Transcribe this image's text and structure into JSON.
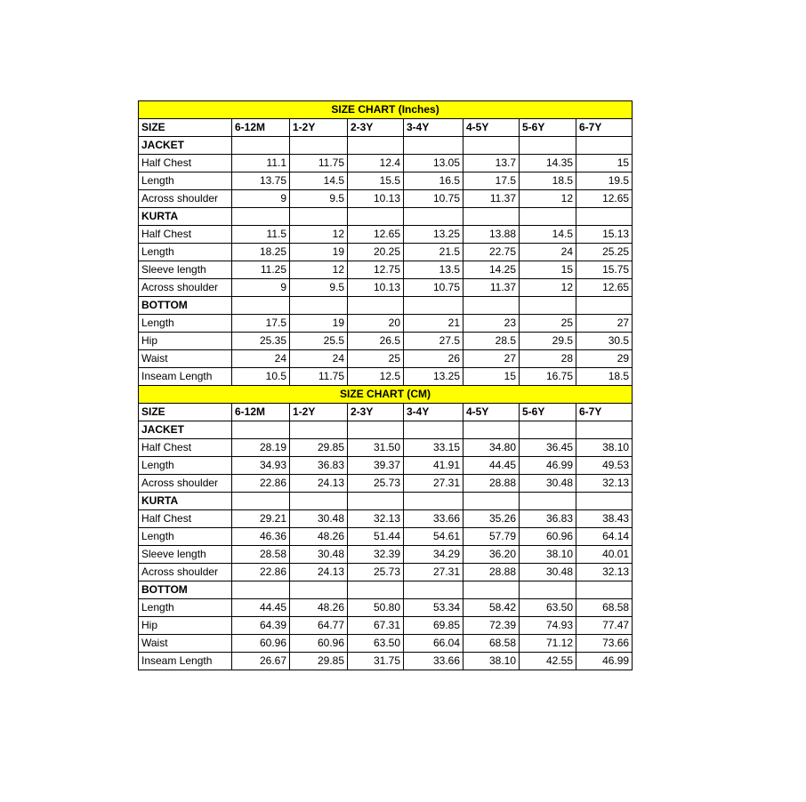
{
  "colors": {
    "title_background": "#ffff00",
    "border": "#000000",
    "text": "#000000"
  },
  "columns": [
    "SIZE",
    "6-12M",
    "1-2Y",
    "2-3Y",
    "3-4Y",
    "4-5Y",
    "5-6Y",
    "6-7Y"
  ],
  "tables": [
    {
      "title": "SIZE CHART (Inches)",
      "sections": [
        {
          "name": "JACKET",
          "rows": [
            {
              "label": "Half Chest",
              "values": [
                "11.1",
                "11.75",
                "12.4",
                "13.05",
                "13.7",
                "14.35",
                "15"
              ]
            },
            {
              "label": "Length",
              "values": [
                "13.75",
                "14.5",
                "15.5",
                "16.5",
                "17.5",
                "18.5",
                "19.5"
              ]
            },
            {
              "label": "Across shoulder",
              "values": [
                "9",
                "9.5",
                "10.13",
                "10.75",
                "11.37",
                "12",
                "12.65"
              ]
            }
          ]
        },
        {
          "name": "KURTA",
          "rows": [
            {
              "label": "Half Chest",
              "values": [
                "11.5",
                "12",
                "12.65",
                "13.25",
                "13.88",
                "14.5",
                "15.13"
              ]
            },
            {
              "label": "Length",
              "values": [
                "18.25",
                "19",
                "20.25",
                "21.5",
                "22.75",
                "24",
                "25.25"
              ]
            },
            {
              "label": "Sleeve length",
              "values": [
                "11.25",
                "12",
                "12.75",
                "13.5",
                "14.25",
                "15",
                "15.75"
              ]
            },
            {
              "label": "Across shoulder",
              "values": [
                "9",
                "9.5",
                "10.13",
                "10.75",
                "11.37",
                "12",
                "12.65"
              ]
            }
          ]
        },
        {
          "name": "BOTTOM",
          "rows": [
            {
              "label": "Length",
              "values": [
                "17.5",
                "19",
                "20",
                "21",
                "23",
                "25",
                "27"
              ]
            },
            {
              "label": "Hip",
              "values": [
                "25.35",
                "25.5",
                "26.5",
                "27.5",
                "28.5",
                "29.5",
                "30.5"
              ]
            },
            {
              "label": "Waist",
              "values": [
                "24",
                "24",
                "25",
                "26",
                "27",
                "28",
                "29"
              ]
            },
            {
              "label": "Inseam Length",
              "values": [
                "10.5",
                "11.75",
                "12.5",
                "13.25",
                "15",
                "16.75",
                "18.5"
              ]
            }
          ]
        }
      ]
    },
    {
      "title": "SIZE CHART (CM)",
      "sections": [
        {
          "name": "JACKET",
          "rows": [
            {
              "label": "Half Chest",
              "values": [
                "28.19",
                "29.85",
                "31.50",
                "33.15",
                "34.80",
                "36.45",
                "38.10"
              ]
            },
            {
              "label": "Length",
              "values": [
                "34.93",
                "36.83",
                "39.37",
                "41.91",
                "44.45",
                "46.99",
                "49.53"
              ]
            },
            {
              "label": "Across shoulder",
              "values": [
                "22.86",
                "24.13",
                "25.73",
                "27.31",
                "28.88",
                "30.48",
                "32.13"
              ]
            }
          ]
        },
        {
          "name": "KURTA",
          "rows": [
            {
              "label": "Half Chest",
              "values": [
                "29.21",
                "30.48",
                "32.13",
                "33.66",
                "35.26",
                "36.83",
                "38.43"
              ]
            },
            {
              "label": "Length",
              "values": [
                "46.36",
                "48.26",
                "51.44",
                "54.61",
                "57.79",
                "60.96",
                "64.14"
              ]
            },
            {
              "label": "Sleeve length",
              "values": [
                "28.58",
                "30.48",
                "32.39",
                "34.29",
                "36.20",
                "38.10",
                "40.01"
              ]
            },
            {
              "label": "Across shoulder",
              "values": [
                "22.86",
                "24.13",
                "25.73",
                "27.31",
                "28.88",
                "30.48",
                "32.13"
              ]
            }
          ]
        },
        {
          "name": "BOTTOM",
          "rows": [
            {
              "label": "Length",
              "values": [
                "44.45",
                "48.26",
                "50.80",
                "53.34",
                "58.42",
                "63.50",
                "68.58"
              ]
            },
            {
              "label": "Hip",
              "values": [
                "64.39",
                "64.77",
                "67.31",
                "69.85",
                "72.39",
                "74.93",
                "77.47"
              ]
            },
            {
              "label": "Waist",
              "values": [
                "60.96",
                "60.96",
                "63.50",
                "66.04",
                "68.58",
                "71.12",
                "73.66"
              ]
            },
            {
              "label": "Inseam Length",
              "values": [
                "26.67",
                "29.85",
                "31.75",
                "33.66",
                "38.10",
                "42.55",
                "46.99"
              ]
            }
          ]
        }
      ]
    }
  ]
}
